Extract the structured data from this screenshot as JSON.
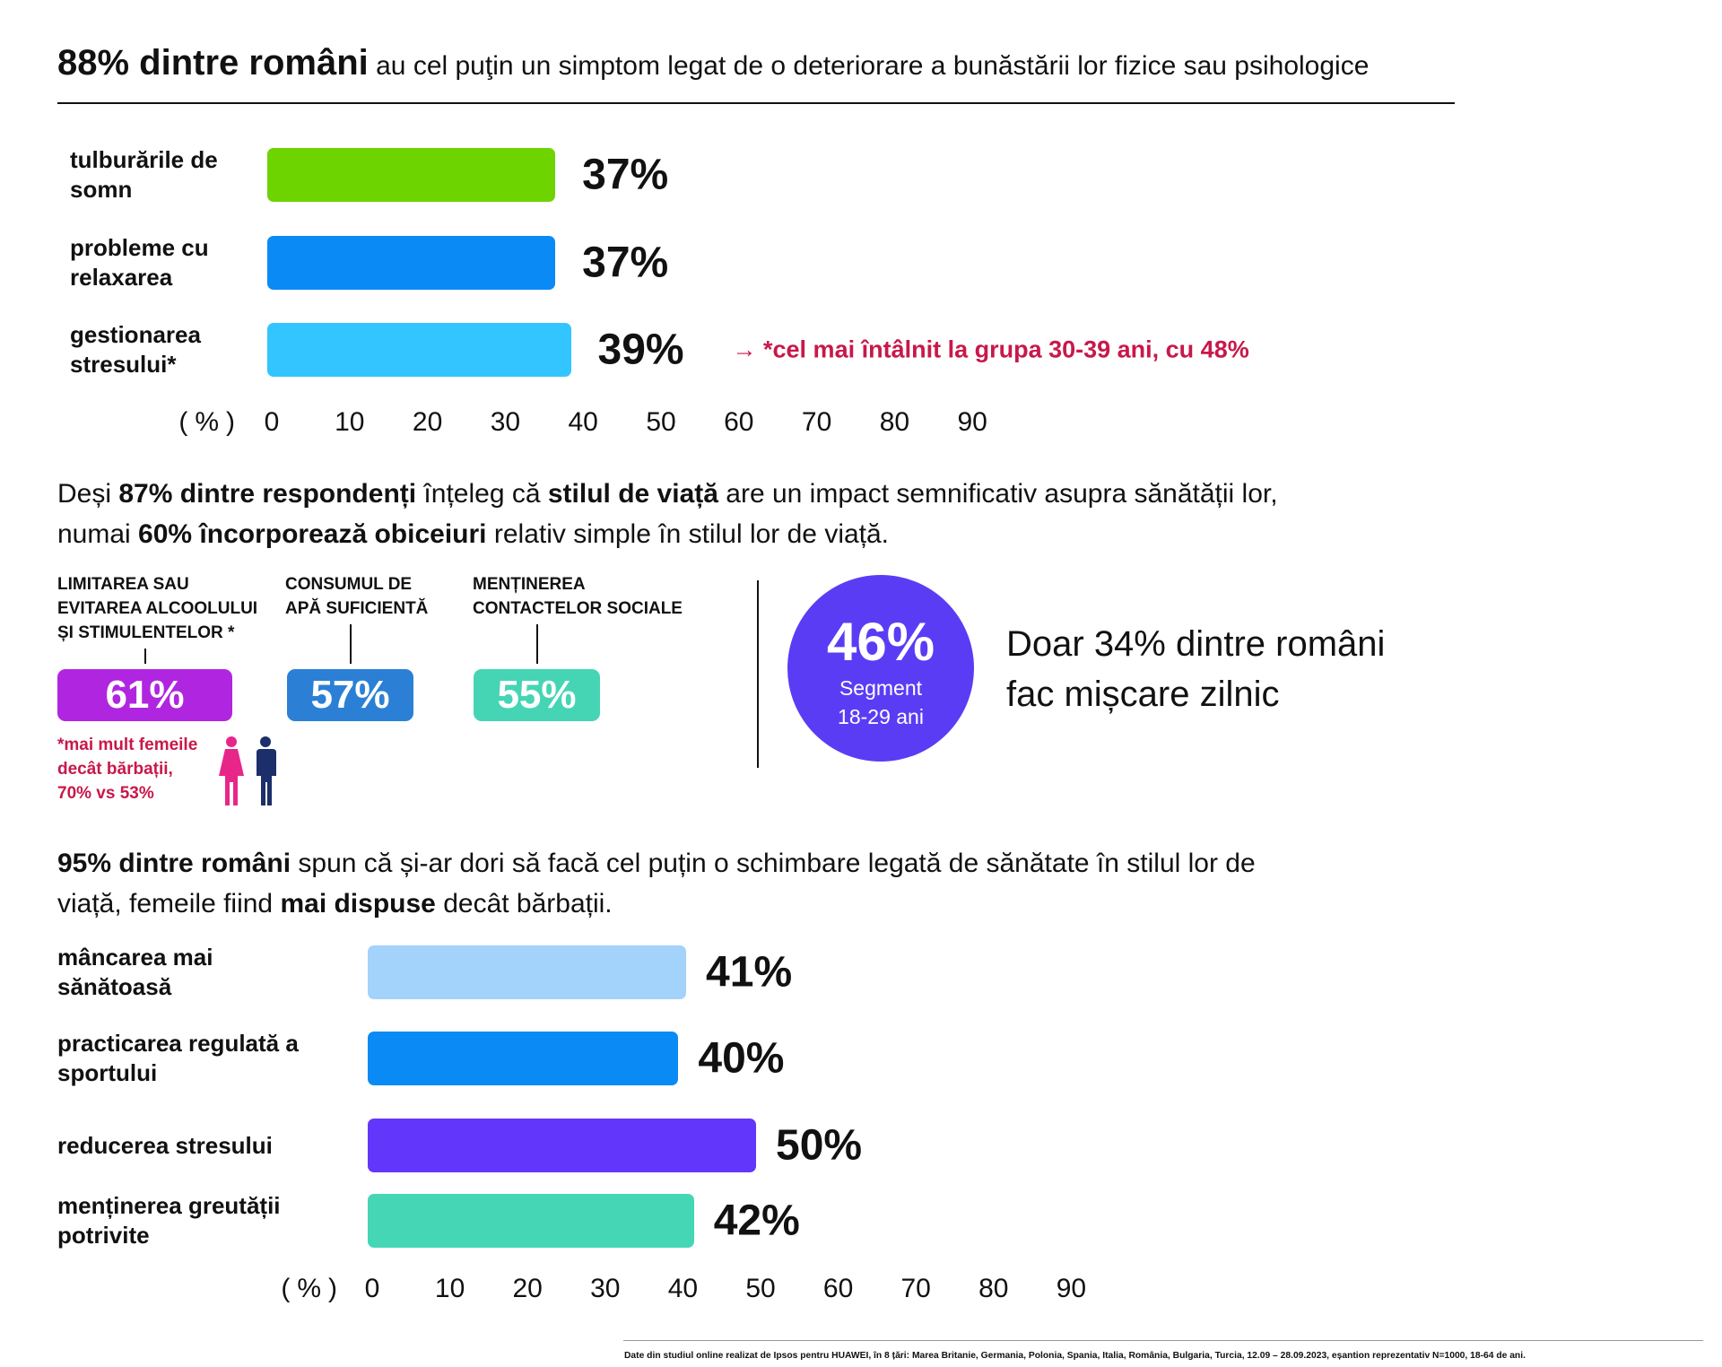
{
  "header": {
    "title_bold": "88% dintre români",
    "title_rest": "au cel puţin un simptom legat de o deteriorare a bunăstării lor fizice sau psihologice"
  },
  "chart_data": [
    {
      "type": "bar",
      "orientation": "horizontal",
      "categories": [
        "tulburările de somn",
        "probleme cu relaxarea",
        "gestionarea stresului*"
      ],
      "values": [
        37,
        37,
        39
      ],
      "value_labels": [
        "37%",
        "37%",
        "39%"
      ],
      "colors": [
        "#6dd400",
        "#0a8af5",
        "#33c5ff"
      ],
      "xlim": [
        0,
        90
      ],
      "xticks": [
        0,
        10,
        20,
        30,
        40,
        50,
        60,
        70,
        80,
        90
      ],
      "xlabel": "(%)",
      "annotation": "→ *cel mai întâlnit la grupa 30-39 ani, cu 48%"
    },
    {
      "type": "bar",
      "orientation": "horizontal",
      "categories": [
        "mâncarea mai sănătoasă",
        "practicarea regulată a sportului",
        "reducerea stresului",
        "menținerea greutății potrivite"
      ],
      "values": [
        41,
        40,
        50,
        42
      ],
      "value_labels": [
        "41%",
        "40%",
        "50%",
        "42%"
      ],
      "colors": [
        "#a3d2fb",
        "#0a8af5",
        "#6236fb",
        "#45d6b6"
      ],
      "xlim": [
        0,
        90
      ],
      "xticks": [
        0,
        10,
        20,
        30,
        40,
        50,
        60,
        70,
        80,
        90
      ],
      "xlabel": "(%)"
    }
  ],
  "lifestyle": {
    "text": [
      "Deși ",
      "87% dintre respondenți",
      " înțeleg că ",
      "stilul de viață",
      " are un impact semnificativ asupra sănătății lor,",
      "numai ",
      "60% încorporează obiceiuri",
      " relativ simple în stilul lor de viață."
    ],
    "habits": [
      {
        "label": [
          "LIMITAREA SAU",
          "EVITAREA ALCOOLULUI",
          "ȘI STIMULENTELOR *"
        ],
        "value": "61%",
        "color": "#b026e0"
      },
      {
        "label": [
          "CONSUMUL DE",
          "APĂ SUFICIENTĂ"
        ],
        "value": "57%",
        "color": "#2b80d6"
      },
      {
        "label": [
          "MENȚINEREA",
          "CONTACTELOR SOCIALE"
        ],
        "value": "55%",
        "color": "#45d5b5"
      }
    ],
    "note": [
      "*mai mult femeile",
      "decât bărbații,",
      "70% vs 53%"
    ],
    "circle": {
      "value": "46%",
      "line1": "Segment",
      "line2": "18-29 ani"
    },
    "daily": [
      "Doar 34% dintre români",
      "fac mișcare zilnic"
    ]
  },
  "change": {
    "text": [
      "95% dintre români",
      " spun că și-ar dori să facă cel puțin o schimbare legată de sănătate în stilul lor de",
      "viață, femeile fiind ",
      "mai dispuse",
      " decât bărbații."
    ]
  },
  "footnote": "Date din studiul online realizat de Ipsos pentru HUAWEI, în 8 țări: Marea Britanie, Germania, Polonia, Spania, Italia, România, Bulgaria, Turcia, 12.09 – 28.09.2023, eșantion reprezentativ N=1000, 18-64 de ani."
}
